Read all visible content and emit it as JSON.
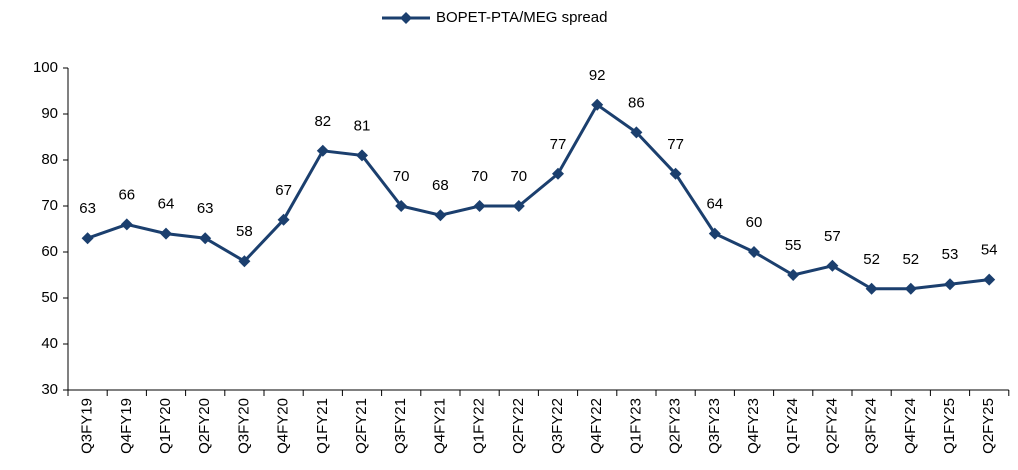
{
  "chart_data": {
    "type": "line",
    "categories": [
      "Q3FY19",
      "Q4FY19",
      "Q1FY20",
      "Q2FY20",
      "Q3FY20",
      "Q4FY20",
      "Q1FY21",
      "Q2FY21",
      "Q3FY21",
      "Q4FY21",
      "Q1FY22",
      "Q2FY22",
      "Q3FY22",
      "Q4FY22",
      "Q1FY23",
      "Q2FY23",
      "Q3FY23",
      "Q4FY23",
      "Q1FY24",
      "Q2FY24",
      "Q3FY24",
      "Q4FY24",
      "Q1FY25",
      "Q2FY25"
    ],
    "series": [
      {
        "name": "BOPET-PTA/MEG spread",
        "color": "#1b3f6e",
        "values": [
          63,
          66,
          64,
          63,
          58,
          67,
          82,
          81,
          70,
          68,
          70,
          70,
          77,
          92,
          86,
          77,
          64,
          60,
          55,
          57,
          52,
          52,
          53,
          54
        ]
      }
    ],
    "ylim": [
      30,
      100
    ],
    "yticks": [
      30,
      40,
      50,
      60,
      70,
      80,
      90,
      100
    ],
    "grid": false,
    "legend": "top"
  }
}
